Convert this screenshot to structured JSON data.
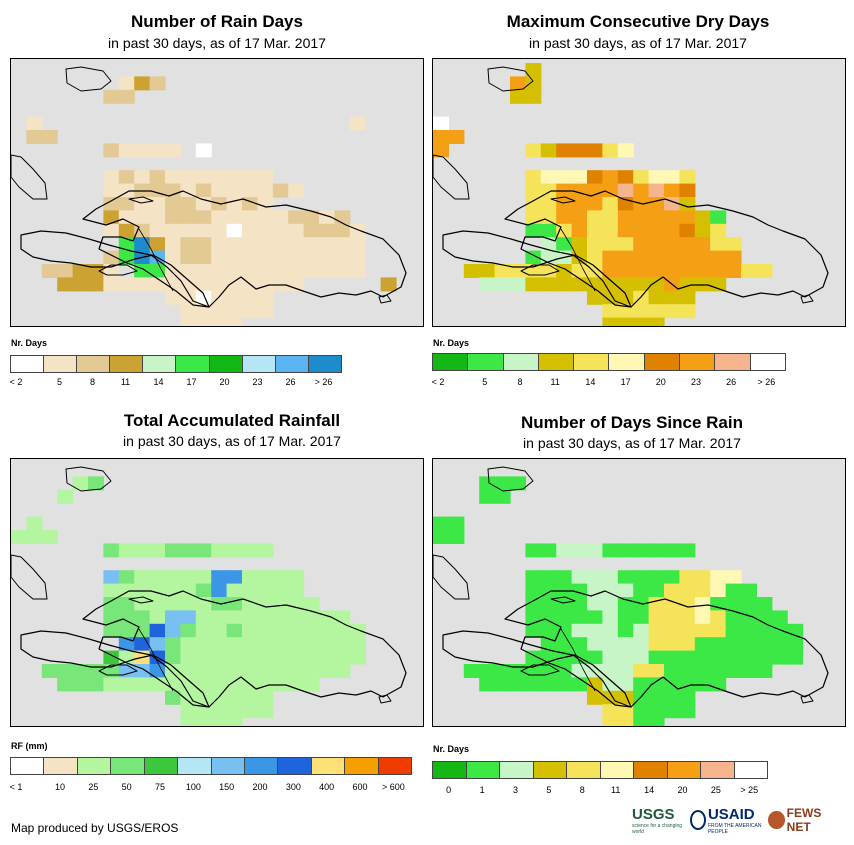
{
  "panels": [
    {
      "id": "rain-days",
      "title": "Number of Rain Days",
      "subtitle": "in past 30 days, as of 17 Mar. 2017",
      "legend_title": "Nr. Days",
      "legend_colors": [
        "#ffffff",
        "#f5e3c5",
        "#e3c994",
        "#cca232",
        "#c8f5c8",
        "#3ce846",
        "#14b814",
        "#b4e6f5",
        "#5ab4f0",
        "#1e8ccc"
      ],
      "legend_labels": [
        "< 2",
        "5",
        "8",
        "11",
        "14",
        "17",
        "20",
        "23",
        "26",
        "> 26"
      ],
      "legend_label_mode": "boundary",
      "grid_codes": [
        "..........................",
        ".......132................",
        "......22..................",
        "..........................",
        ".1....................1...",
        ".22.......................",
        "......21111.0.............",
        "..........................",
        "......12121111111.........",
        "......1122212111121.......",
        "......22112212121.........",
        "......3111222111112212....",
        "......13211111011112221...",
        ".......5931221111111111...",
        "......25981221111111111...",
        "..22331.551111111111111...",
        "...3331111111111111.....3.",
        "..........1101111.........",
        "...........111111.........",
        "...........1111...........",
        "...........11.............",
        ".........................."
      ]
    },
    {
      "id": "max-dry-days",
      "title": "Maximum Consecutive Dry Days",
      "subtitle": "in past 30 days, as of 17 Mar. 2017",
      "legend_title": "Nr. Days",
      "legend_colors": [
        "#14b814",
        "#3ce846",
        "#c8f5c8",
        "#d4c000",
        "#f5e35a",
        "#fff8b4",
        "#e08200",
        "#f5a014",
        "#f5b48c",
        "#ffffff"
      ],
      "legend_labels": [
        "< 2",
        "5",
        "8",
        "11",
        "14",
        "17",
        "20",
        "23",
        "26",
        "> 26"
      ],
      "legend_label_mode": "boundary",
      "grid_codes": [
        "......3...................",
        ".....73...................",
        ".....33...................",
        "..........................",
        "9.........................",
        "77........................",
        "7.....4366645.............",
        "..........................",
        "......45556764554.........",
        "......44777787876.........",
        "......44777467783.........",
        "......4477447777731.......",
        "......1147447777634.......",
        ".......2134447777744......",
        "......12234777777777......",
        "..33444434477777777744....",
        "...2223333333337333.......",
        "..........3334333.........",
        "...........444444.........",
        "...........3333...........",
        "...........33.............",
        ".........................."
      ]
    },
    {
      "id": "total-rainfall",
      "title": "Total Accumulated Rainfall",
      "subtitle": "in past 30 days, as of 17 Mar. 2017",
      "legend_title": "RF (mm)",
      "legend_colors": [
        "#ffffff",
        "#f5e3c5",
        "#b4f5a0",
        "#78e678",
        "#3cc83c",
        "#b4e6f5",
        "#78c0f0",
        "#3c96e6",
        "#1e64dc",
        "#fde178",
        "#f5a000",
        "#f03c00"
      ],
      "legend_labels": [
        "< 1",
        "10",
        "25",
        "50",
        "75",
        "100",
        "150",
        "200",
        "300",
        "400",
        "600",
        "> 600"
      ],
      "legend_label_mode": "boundary",
      "grid_codes": [
        "..........................",
        "....23....................",
        "...2......................",
        "..........................",
        ".2........................",
        "222.......................",
        "......32223332222.........",
        "..........................",
        "......6322222772222.......",
        "......2222223722222.......",
        "......33222223322222......",
        "......3332662222222222....",
        "......33386322322222222...",
        ".......7863222222222222...",
        "......42983222222222222...",
        "..33333667222222222222....",
        "...33322222222222222......",
        "..........3222222.........",
        "...........222222.........",
        "...........2222...........",
        "...........22.............",
        ".........................."
      ]
    },
    {
      "id": "days-since-rain",
      "title": "Number of Days Since Rain",
      "subtitle": "in past 30 days, as of 17 Mar. 2017",
      "legend_title": "Nr. Days",
      "legend_colors": [
        "#14b814",
        "#3ce846",
        "#c8f5c8",
        "#d4c000",
        "#f5e35a",
        "#fff8b4",
        "#e08200",
        "#f5a014",
        "#f5b48c",
        "#ffffff"
      ],
      "legend_labels": [
        "0",
        "1",
        "3",
        "5",
        "8",
        "11",
        "14",
        "20",
        "25",
        "> 25"
      ],
      "legend_label_mode": "center",
      "grid_codes": [
        "..........................",
        "...111....................",
        "...11.....................",
        "..........................",
        "11........................",
        "11........................",
        "......11222111111.........",
        "..........................",
        "......11122211114455......",
        "......111122211444511.....",
        "......1111221144451111....",
        "......11111211444541111...",
        "......111222124444411111..",
        ".......11122224441111111..",
        "......111112221111111111..",
        "..11111112222441111111....",
        "...1111111322111111.......",
        "..........3331111.........",
        "...........441111.........",
        "...........4411...........",
        "...........11.............",
        ".........................."
      ]
    }
  ],
  "credit": "Map produced by USGS/EROS",
  "logos": {
    "usgs": "USGS",
    "usgs_tagline": "science for a changing world",
    "usaid": "USAID",
    "usaid_tagline": "FROM THE AMERICAN PEOPLE",
    "fews": "FEWS NET"
  }
}
